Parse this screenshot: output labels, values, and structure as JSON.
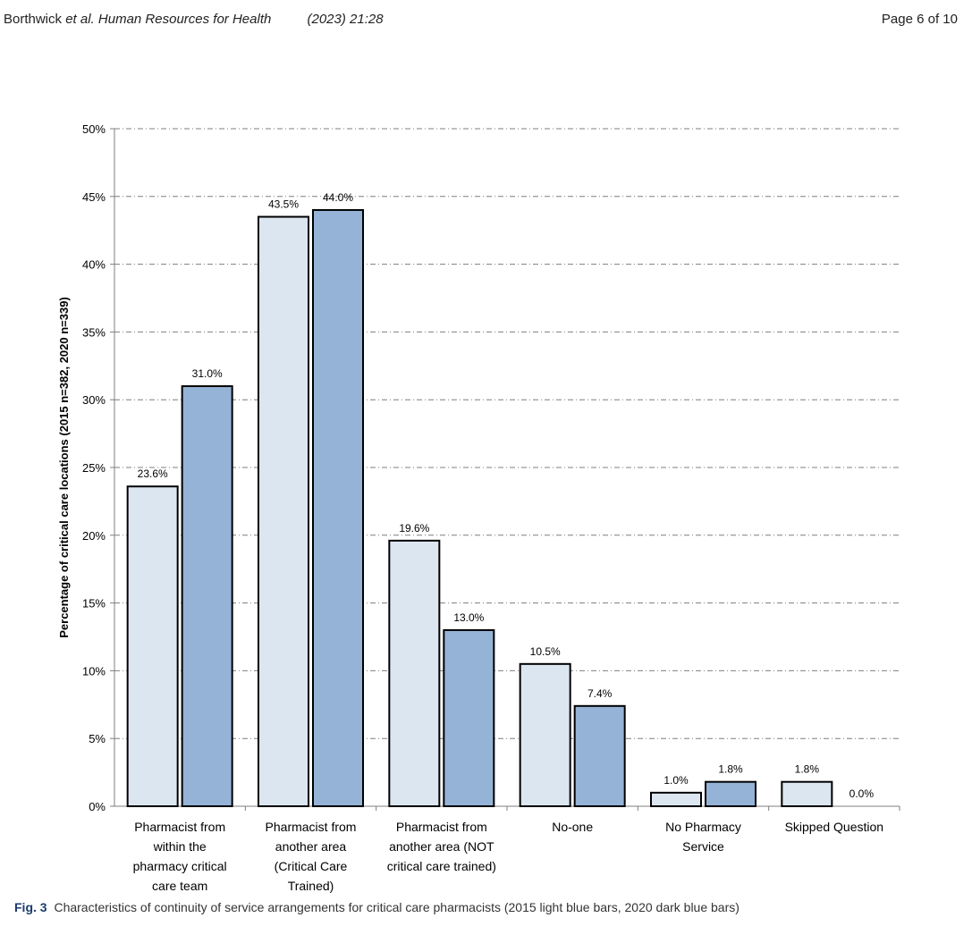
{
  "header": {
    "authors": "Borthwick",
    "etal": "et al.",
    "journal": "Human Resources for Health",
    "citation": "(2023) 21:28",
    "page": "Page 6 of 10"
  },
  "caption": {
    "label": "Fig. 3",
    "text": "Characteristics of continuity of service arrangements for critical care pharmacists (2015 light blue bars, 2020 dark blue bars)"
  },
  "chart_data": {
    "type": "bar",
    "title": "",
    "xlabel": "",
    "ylabel": "Percentage of critical care locations (2015 n=382, 2020 n=339)",
    "ylim": [
      0,
      50
    ],
    "yticks": [
      "0%",
      "5%",
      "10%",
      "15%",
      "20%",
      "25%",
      "30%",
      "35%",
      "40%",
      "45%",
      "50%"
    ],
    "grid": true,
    "categories": [
      [
        "Pharmacist from",
        "within the",
        "pharmacy critical",
        "care team"
      ],
      [
        "Pharmacist from",
        "another area",
        "(Critical Care",
        "Trained)"
      ],
      [
        "Pharmacist from",
        "another area (NOT",
        "critical care trained)"
      ],
      [
        "No-one"
      ],
      [
        "No Pharmacy",
        "Service"
      ],
      [
        "Skipped Question"
      ]
    ],
    "series": [
      {
        "values": [
          23.6,
          43.5,
          19.6,
          10.5,
          1.0,
          1.8
        ],
        "labels": [
          "23.6%",
          "43.5%",
          "19.6%",
          "10.5%",
          "1.0%",
          "1.8%"
        ],
        "color": "#dce6f1"
      },
      {
        "values": [
          31.0,
          44.0,
          13.0,
          7.4,
          1.8,
          0.0
        ],
        "labels": [
          "31.0%",
          "44.0%",
          "13.0%",
          "7.4%",
          "1.8%",
          "0.0%"
        ],
        "color": "#95b3d7"
      }
    ]
  }
}
